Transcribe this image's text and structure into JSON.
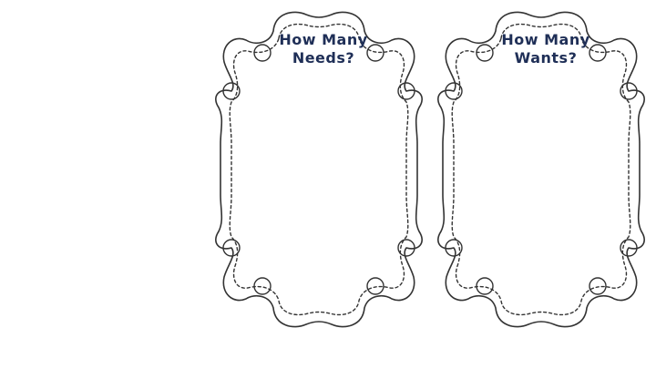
{
  "frames": [
    {
      "title_line1": "How Many",
      "title_line2": "Needs?"
    },
    {
      "title_line1": "How Many",
      "title_line2": "Wants?"
    }
  ],
  "colors": {
    "title_text": "#1f2f57",
    "outline": "#333333",
    "background": "#ffffff"
  }
}
